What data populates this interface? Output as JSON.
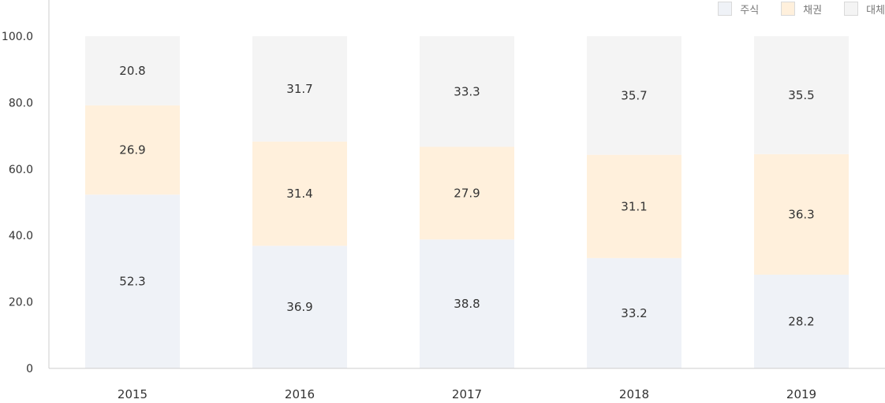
{
  "chart_data": {
    "type": "bar",
    "stacked": true,
    "categories": [
      "2015",
      "2016",
      "2017",
      "2018",
      "2019"
    ],
    "series": [
      {
        "name": "주식",
        "values": [
          52.3,
          36.9,
          38.8,
          33.2,
          28.2
        ],
        "color": "#eff2f7"
      },
      {
        "name": "채권",
        "values": [
          26.9,
          31.4,
          27.9,
          31.1,
          36.3
        ],
        "color": "#fff0dc"
      },
      {
        "name": "대체",
        "values": [
          20.8,
          31.7,
          33.3,
          35.7,
          35.5
        ],
        "color": "#f4f4f4"
      }
    ],
    "yticks": [
      "0",
      "20.0",
      "40.0",
      "60.0",
      "80.0",
      "100.0"
    ],
    "ylim": [
      0,
      100
    ],
    "legend_position": "top-right",
    "grid": false
  }
}
